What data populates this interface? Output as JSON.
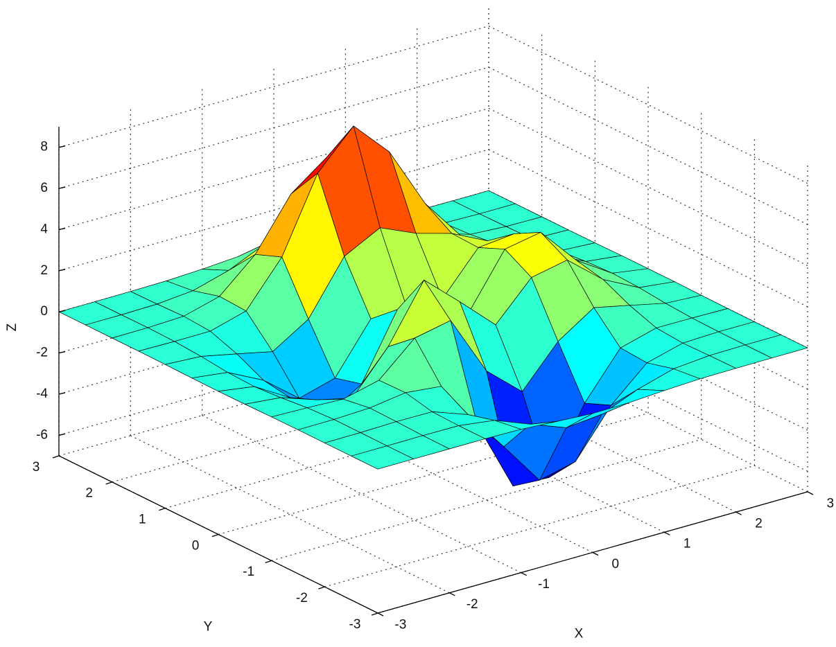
{
  "chart_data": {
    "type": "surface",
    "x": [
      -3,
      -2.5,
      -2,
      -1.5,
      -1,
      -0.5,
      0,
      0.5,
      1,
      1.5,
      2,
      2.5,
      3
    ],
    "y": [
      -3,
      -2.5,
      -2,
      -1.5,
      -1,
      -0.5,
      0,
      0.5,
      1,
      1.5,
      2,
      2.5,
      3
    ],
    "z": [
      [
        0,
        0,
        0,
        0,
        -0.03,
        -0.14,
        -0.24,
        -0.22,
        -0.11,
        -0.03,
        -0.01,
        0,
        0
      ],
      [
        0,
        0,
        0.01,
        0,
        -0.23,
        -0.91,
        -1.57,
        -1.41,
        -0.69,
        -0.18,
        -0.03,
        0,
        0
      ],
      [
        0,
        0.01,
        0.05,
        0.04,
        -0.59,
        -2.64,
        -4.76,
        -4.35,
        -2.1,
        -0.53,
        -0.06,
        0,
        0
      ],
      [
        0,
        0.01,
        0.08,
        0.33,
        0.15,
        -2.19,
        -5.68,
        -5.76,
        -2.64,
        -0.44,
        0.04,
        0.03,
        0
      ],
      [
        -0.01,
        -0.06,
        -0.13,
        0.3,
        1.86,
        2.22,
        -0.72,
        -2.22,
        -0.27,
        0.88,
        0.5,
        0.11,
        0.01
      ],
      [
        -0.03,
        -0.2,
        -0.8,
        -1.21,
        0.8,
        3.55,
        2,
        0.39,
        2.2,
        2.56,
        1.12,
        0.24,
        0.03
      ],
      [
        -0.04,
        -0.3,
        -1.33,
        -2.77,
        -1.65,
        1.48,
        0.98,
        0.37,
        2.94,
        3.27,
        1.41,
        0.3,
        0.03
      ],
      [
        -0.03,
        -0.25,
        -1.12,
        -2.49,
        -2,
        0.39,
        0.46,
        0.38,
        2.38,
        2.56,
        1.09,
        0.23,
        0.03
      ],
      [
        -0.01,
        -0.11,
        -0.48,
        -0.86,
        0.23,
        2.79,
        3.69,
        2.93,
        2.43,
        1.58,
        0.58,
        0.11,
        0.01
      ],
      [
        0,
        -0.02,
        -0.01,
        0.48,
        2.61,
        6.2,
        8,
        6.25,
        3.25,
        1.19,
        0.29,
        0.05,
        0
      ],
      [
        0,
        0.01,
        0.08,
        0.55,
        2.1,
        4.56,
        5.86,
        4.57,
        2.21,
        0.68,
        0.13,
        0.02,
        0
      ],
      [
        0,
        0,
        0.03,
        0.19,
        0.69,
        1.47,
        1.88,
        1.47,
        0.7,
        0.2,
        0.04,
        0,
        0
      ],
      [
        0,
        0,
        0.01,
        0.03,
        0.11,
        0.23,
        0.3,
        0.23,
        0.11,
        0.03,
        0.01,
        0,
        0
      ]
    ],
    "xlabel": "X",
    "ylabel": "Y",
    "zlabel": "Z",
    "xlim": [
      -3,
      3
    ],
    "ylim": [
      -3,
      3
    ],
    "zlim": [
      -7,
      9
    ],
    "xticks": [
      -3,
      -2,
      -1,
      0,
      1,
      2,
      3
    ],
    "yticks": [
      -3,
      -2,
      -1,
      0,
      1,
      2,
      3
    ],
    "zticks": [
      -6,
      -4,
      -2,
      0,
      2,
      4,
      6,
      8
    ],
    "grid": true,
    "colormap": "jet",
    "edgecolor": "#000000"
  }
}
